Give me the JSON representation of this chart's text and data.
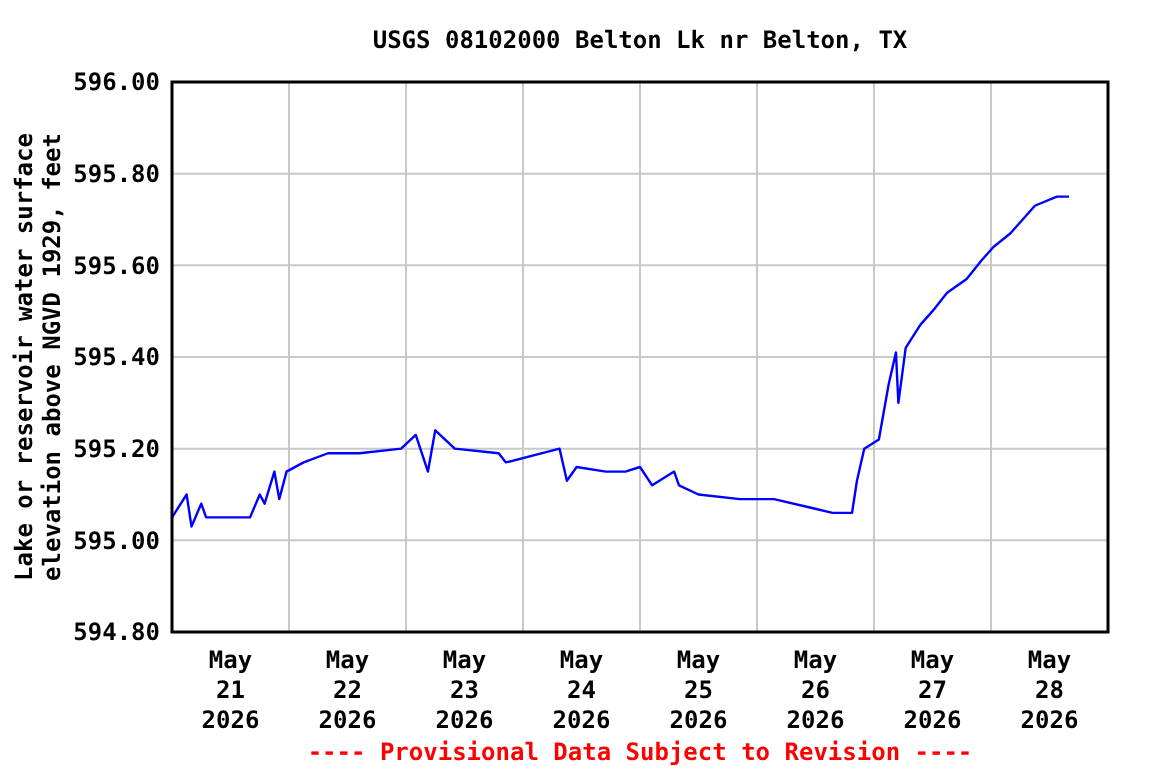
{
  "chart_data": {
    "type": "line",
    "title": "USGS 08102000 Belton Lk nr Belton, TX",
    "ylabel": "Lake or reservoir water surface\nelevation above NGVD 1929, feet",
    "annotations": [
      "---- Provisional Data Subject to Revision ----"
    ],
    "x": [
      "2026-05-21T00:00",
      "2026-05-21T03:00",
      "2026-05-21T04:00",
      "2026-05-21T06:00",
      "2026-05-21T07:00",
      "2026-05-21T16:00",
      "2026-05-21T18:00",
      "2026-05-21T19:00",
      "2026-05-21T21:00",
      "2026-05-21T22:00",
      "2026-05-21T23:30",
      "2026-05-22T03:00",
      "2026-05-22T08:00",
      "2026-05-22T14:30",
      "2026-05-22T23:00",
      "2026-05-23T02:00",
      "2026-05-23T04:30",
      "2026-05-23T06:00",
      "2026-05-23T10:00",
      "2026-05-23T19:00",
      "2026-05-23T20:30",
      "2026-05-24T07:30",
      "2026-05-24T09:00",
      "2026-05-24T11:00",
      "2026-05-24T17:00",
      "2026-05-24T21:00",
      "2026-05-25T00:00",
      "2026-05-25T02:30",
      "2026-05-25T07:00",
      "2026-05-25T08:00",
      "2026-05-25T12:00",
      "2026-05-25T20:30",
      "2026-05-26T03:30",
      "2026-05-26T11:30",
      "2026-05-26T15:30",
      "2026-05-26T19:30",
      "2026-05-26T20:30",
      "2026-05-26T22:00",
      "2026-05-27T01:00",
      "2026-05-27T03:00",
      "2026-05-27T04:30",
      "2026-05-27T05:00",
      "2026-05-27T06:30",
      "2026-05-27T09:30",
      "2026-05-27T12:00",
      "2026-05-27T15:00",
      "2026-05-27T19:00",
      "2026-05-27T22:00",
      "2026-05-28T00:30",
      "2026-05-28T04:00",
      "2026-05-28T06:30",
      "2026-05-28T09:00",
      "2026-05-28T13:30",
      "2026-05-28T16:00"
    ],
    "series": [
      {
        "color": "#0000ff",
        "values": [
          595.05,
          595.1,
          595.03,
          595.08,
          595.05,
          595.05,
          595.1,
          595.08,
          595.15,
          595.09,
          595.15,
          595.17,
          595.19,
          595.19,
          595.2,
          595.23,
          595.15,
          595.24,
          595.2,
          595.19,
          595.17,
          595.2,
          595.13,
          595.16,
          595.15,
          595.15,
          595.16,
          595.12,
          595.15,
          595.12,
          595.1,
          595.09,
          595.09,
          595.07,
          595.06,
          595.06,
          595.13,
          595.2,
          595.22,
          595.34,
          595.41,
          595.3,
          595.42,
          595.47,
          595.5,
          595.54,
          595.57,
          595.61,
          595.64,
          595.67,
          595.7,
          595.73,
          595.75,
          595.75
        ]
      }
    ],
    "xlim": [
      "2026-05-21",
      "2026-05-29"
    ],
    "xticks": [
      {
        "value": "2026-05-21T12:00",
        "label": "May\n21\n2026"
      },
      {
        "value": "2026-05-22",
        "label": null
      },
      {
        "value": "2026-05-22T12:00",
        "label": "May\n22\n2026"
      },
      {
        "value": "2026-05-23",
        "label": null
      },
      {
        "value": "2026-05-23T12:00",
        "label": "May\n23\n2026"
      },
      {
        "value": "2026-05-24",
        "label": null
      },
      {
        "value": "2026-05-24T12:00",
        "label": "May\n24\n2026"
      },
      {
        "value": "2026-05-25",
        "label": null
      },
      {
        "value": "2026-05-25T12:00",
        "label": "May\n25\n2026"
      },
      {
        "value": "2026-05-26",
        "label": null
      },
      {
        "value": "2026-05-26T12:00",
        "label": "May\n26\n2026"
      },
      {
        "value": "2026-05-27",
        "label": null
      },
      {
        "value": "2026-05-27T12:00",
        "label": "May\n27\n2026"
      },
      {
        "value": "2026-05-28",
        "label": null
      },
      {
        "value": "2026-05-28T12:00",
        "label": "May\n28\n2026"
      }
    ],
    "ylim": [
      594.8,
      596.0
    ],
    "yticks": [
      {
        "value": 594.8,
        "label": "594.80"
      },
      {
        "value": 595.0,
        "label": "595.00"
      },
      {
        "value": 595.2,
        "label": "595.20"
      },
      {
        "value": 595.4,
        "label": "595.40"
      },
      {
        "value": 595.6,
        "label": "595.60"
      },
      {
        "value": 595.8,
        "label": "595.80"
      },
      {
        "value": 596.0,
        "label": "596.00"
      }
    ],
    "grid": true,
    "line_style": "solid",
    "marker": "none"
  }
}
